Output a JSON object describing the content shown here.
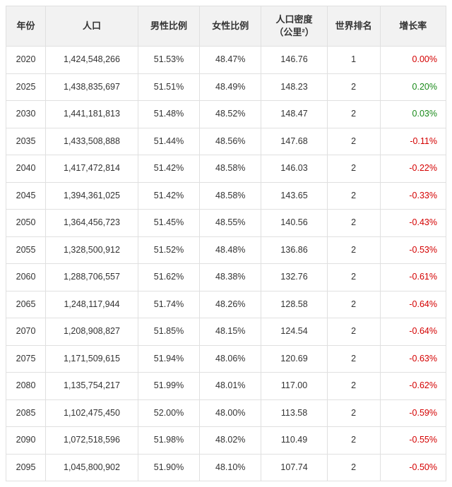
{
  "table": {
    "columns": [
      {
        "key": "year",
        "label": "年份"
      },
      {
        "key": "pop",
        "label": "人口"
      },
      {
        "key": "male",
        "label": "男性比例"
      },
      {
        "key": "female",
        "label": "女性比例"
      },
      {
        "key": "density",
        "label": "人口密度\n（公里²）"
      },
      {
        "key": "rank",
        "label": "世界排名"
      },
      {
        "key": "growth",
        "label": "增长率"
      }
    ],
    "colors": {
      "header_bg": "#f2f2f2",
      "border": "#e0e0e0",
      "text": "#333333",
      "positive": "#1a8a1a",
      "zero": "#d40000",
      "negative": "#d40000"
    },
    "rows": [
      {
        "year": "2020",
        "pop": "1,424,548,266",
        "male": "51.53%",
        "female": "48.47%",
        "density": "146.76",
        "rank": "1",
        "growth": "0.00%",
        "growth_sign": "zero"
      },
      {
        "year": "2025",
        "pop": "1,438,835,697",
        "male": "51.51%",
        "female": "48.49%",
        "density": "148.23",
        "rank": "2",
        "growth": "0.20%",
        "growth_sign": "positive"
      },
      {
        "year": "2030",
        "pop": "1,441,181,813",
        "male": "51.48%",
        "female": "48.52%",
        "density": "148.47",
        "rank": "2",
        "growth": "0.03%",
        "growth_sign": "positive"
      },
      {
        "year": "2035",
        "pop": "1,433,508,888",
        "male": "51.44%",
        "female": "48.56%",
        "density": "147.68",
        "rank": "2",
        "growth": "-0.11%",
        "growth_sign": "negative"
      },
      {
        "year": "2040",
        "pop": "1,417,472,814",
        "male": "51.42%",
        "female": "48.58%",
        "density": "146.03",
        "rank": "2",
        "growth": "-0.22%",
        "growth_sign": "negative"
      },
      {
        "year": "2045",
        "pop": "1,394,361,025",
        "male": "51.42%",
        "female": "48.58%",
        "density": "143.65",
        "rank": "2",
        "growth": "-0.33%",
        "growth_sign": "negative"
      },
      {
        "year": "2050",
        "pop": "1,364,456,723",
        "male": "51.45%",
        "female": "48.55%",
        "density": "140.56",
        "rank": "2",
        "growth": "-0.43%",
        "growth_sign": "negative"
      },
      {
        "year": "2055",
        "pop": "1,328,500,912",
        "male": "51.52%",
        "female": "48.48%",
        "density": "136.86",
        "rank": "2",
        "growth": "-0.53%",
        "growth_sign": "negative"
      },
      {
        "year": "2060",
        "pop": "1,288,706,557",
        "male": "51.62%",
        "female": "48.38%",
        "density": "132.76",
        "rank": "2",
        "growth": "-0.61%",
        "growth_sign": "negative"
      },
      {
        "year": "2065",
        "pop": "1,248,117,944",
        "male": "51.74%",
        "female": "48.26%",
        "density": "128.58",
        "rank": "2",
        "growth": "-0.64%",
        "growth_sign": "negative"
      },
      {
        "year": "2070",
        "pop": "1,208,908,827",
        "male": "51.85%",
        "female": "48.15%",
        "density": "124.54",
        "rank": "2",
        "growth": "-0.64%",
        "growth_sign": "negative"
      },
      {
        "year": "2075",
        "pop": "1,171,509,615",
        "male": "51.94%",
        "female": "48.06%",
        "density": "120.69",
        "rank": "2",
        "growth": "-0.63%",
        "growth_sign": "negative"
      },
      {
        "year": "2080",
        "pop": "1,135,754,217",
        "male": "51.99%",
        "female": "48.01%",
        "density": "117.00",
        "rank": "2",
        "growth": "-0.62%",
        "growth_sign": "negative"
      },
      {
        "year": "2085",
        "pop": "1,102,475,450",
        "male": "52.00%",
        "female": "48.00%",
        "density": "113.58",
        "rank": "2",
        "growth": "-0.59%",
        "growth_sign": "negative"
      },
      {
        "year": "2090",
        "pop": "1,072,518,596",
        "male": "51.98%",
        "female": "48.02%",
        "density": "110.49",
        "rank": "2",
        "growth": "-0.55%",
        "growth_sign": "negative"
      },
      {
        "year": "2095",
        "pop": "1,045,800,902",
        "male": "51.90%",
        "female": "48.10%",
        "density": "107.74",
        "rank": "2",
        "growth": "-0.50%",
        "growth_sign": "negative"
      }
    ]
  }
}
